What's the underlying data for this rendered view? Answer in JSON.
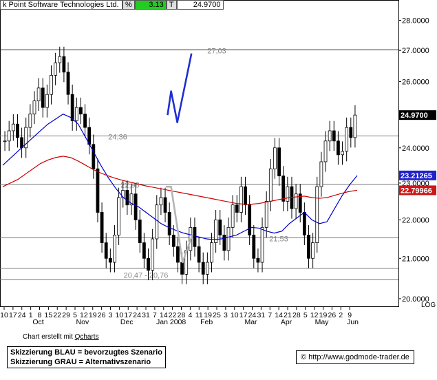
{
  "header": {
    "name": "k Point Software Technologies Ltd.",
    "pct_symbol": "%",
    "change": "3.13",
    "tick_symbol": "T",
    "last": "24.9700"
  },
  "footer": {
    "credit_prefix": "Chart erstellt mit ",
    "credit_link": "Qcharts",
    "legend_blue": "Skizzierung BLAU = bevorzugtes Szenario",
    "legend_gray": "Skizzierung GRAU = Alternativszenario",
    "copyright": "©",
    "website": "http://www.godmode-trader.de",
    "scale_label": "LOG"
  },
  "colors": {
    "blue_ma": "#0000cc",
    "red_ma": "#cc0000",
    "scenario_blue": "#1f2fd0",
    "scenario_gray": "#b4b4b4",
    "last_price_bg": "#000000",
    "ma_blue_tag": "#2020cc",
    "ma_red_tag": "#cc1818",
    "ticker_change_bg": "#22cc22"
  },
  "chart_data": {
    "type": "candlestick",
    "scale": "log",
    "ylim": [
      19.8,
      28.6
    ],
    "yticks": [
      "28.0000",
      "27.0000",
      "26.0000",
      "25.0000",
      "24.0000",
      "23.0000",
      "22.0000",
      "21.0000",
      "20.0000"
    ],
    "ytick_values": [
      28,
      27,
      26,
      25,
      24,
      23,
      22,
      21,
      20
    ],
    "x_day_labels": [
      "10",
      "17",
      "24",
      "1",
      "8",
      "15",
      "22",
      "29",
      "5",
      "12",
      "19",
      "26",
      "3",
      "10",
      "17",
      "24",
      "31",
      "7",
      "14",
      "22",
      "28",
      "4",
      "11",
      "19",
      "25",
      "3",
      "10",
      "17",
      "24",
      "31",
      "7",
      "14",
      "21",
      "28",
      "5",
      "12",
      "19",
      "26",
      "2",
      "9"
    ],
    "x_month_labels": [
      {
        "label": "Oct",
        "at": "4"
      },
      {
        "label": "Nov",
        "at": "9"
      },
      {
        "label": "Dec",
        "at": "14"
      },
      {
        "label": "Jan 2008",
        "at": "19"
      },
      {
        "label": "Feb",
        "at": "23"
      },
      {
        "label": "Mar",
        "at": "28"
      },
      {
        "label": "Apr",
        "at": "32"
      },
      {
        "label": "May",
        "at": "36"
      },
      {
        "label": "Jun",
        "at": "39.5"
      }
    ],
    "levels": [
      {
        "value": 27.03,
        "label": "27,03"
      },
      {
        "value": 24.36,
        "label": "24,36"
      },
      {
        "value": 22.98,
        "label": "22,98"
      },
      {
        "value": 21.53,
        "label": "21,53"
      },
      {
        "value": 20.76,
        "label": "20,47 - 20,76"
      },
      {
        "value": 20.47,
        "label": ""
      }
    ],
    "last_price": {
      "value": 24.97,
      "label": "24.9700"
    },
    "ma_blue_last": {
      "value": 23.21265,
      "label": "23.21265"
    },
    "ma_red_last": {
      "value": 22.79966,
      "label": "22.79966"
    },
    "closes": [
      24.2,
      24.5,
      24.7,
      24.3,
      24.0,
      24.6,
      25.0,
      25.4,
      25.8,
      25.2,
      25.6,
      26.2,
      26.6,
      26.8,
      26.3,
      25.6,
      24.8,
      25.2,
      25.0,
      24.6,
      24.1,
      23.4,
      22.2,
      21.4,
      21.0,
      20.9,
      21.6,
      22.6,
      22.8,
      22.4,
      22.7,
      22.0,
      21.4,
      21.0,
      20.7,
      21.5,
      22.4,
      22.6,
      22.2,
      21.6,
      21.3,
      20.9,
      20.6,
      21.2,
      21.8,
      21.3,
      20.9,
      20.6,
      20.9,
      21.4,
      22.0,
      21.6,
      21.2,
      21.8,
      22.4,
      22.2,
      22.9,
      22.4,
      21.6,
      21.0,
      20.9,
      21.8,
      22.5,
      23.4,
      24.0,
      23.2,
      22.5,
      22.9,
      22.3,
      22.7,
      22.2,
      21.6,
      21.0,
      21.4,
      22.9,
      23.6,
      24.2,
      24.5,
      24.2,
      23.8,
      23.9,
      24.6,
      24.3,
      24.97
    ],
    "ma_blue": [
      23.5,
      23.7,
      23.9,
      24.1,
      24.3,
      24.5,
      24.7,
      24.85,
      25.0,
      24.9,
      24.7,
      24.3,
      23.9,
      23.5,
      23.15,
      22.85,
      22.6,
      22.45,
      22.35,
      22.2,
      22.05,
      21.9,
      21.8,
      21.72,
      21.65,
      21.6,
      21.55,
      21.5,
      21.48,
      21.5,
      21.55,
      21.6,
      21.7,
      21.8,
      21.78,
      21.7,
      21.65,
      21.7,
      21.9,
      22.05,
      22.2,
      22.0,
      21.9,
      21.95,
      22.3,
      22.65,
      22.95,
      23.21
    ],
    "ma_red": [
      22.9,
      23.0,
      23.1,
      23.25,
      23.4,
      23.55,
      23.65,
      23.72,
      23.76,
      23.72,
      23.62,
      23.5,
      23.38,
      23.28,
      23.2,
      23.13,
      23.07,
      23.02,
      22.97,
      22.92,
      22.88,
      22.84,
      22.8,
      22.76,
      22.72,
      22.68,
      22.64,
      22.6,
      22.56,
      22.52,
      22.48,
      22.44,
      22.42,
      22.42,
      22.44,
      22.48,
      22.52,
      22.56,
      22.6,
      22.62,
      22.64,
      22.6,
      22.58,
      22.6,
      22.66,
      22.72,
      22.77,
      22.8
    ],
    "scenario_blue": [
      {
        "d": "18.6",
        "y": 24.97
      },
      {
        "d": "19",
        "y": 25.7
      },
      {
        "d": "19.7",
        "y": 24.75
      },
      {
        "d": "21.3",
        "y": 26.9
      }
    ],
    "scenario_gray": [
      {
        "d": "18.4",
        "y": 22.9
      },
      {
        "d": "19",
        "y": 22.9
      },
      {
        "d": "20.3",
        "y": 20.9
      },
      {
        "d": "21.4",
        "y": 21.6
      }
    ]
  }
}
